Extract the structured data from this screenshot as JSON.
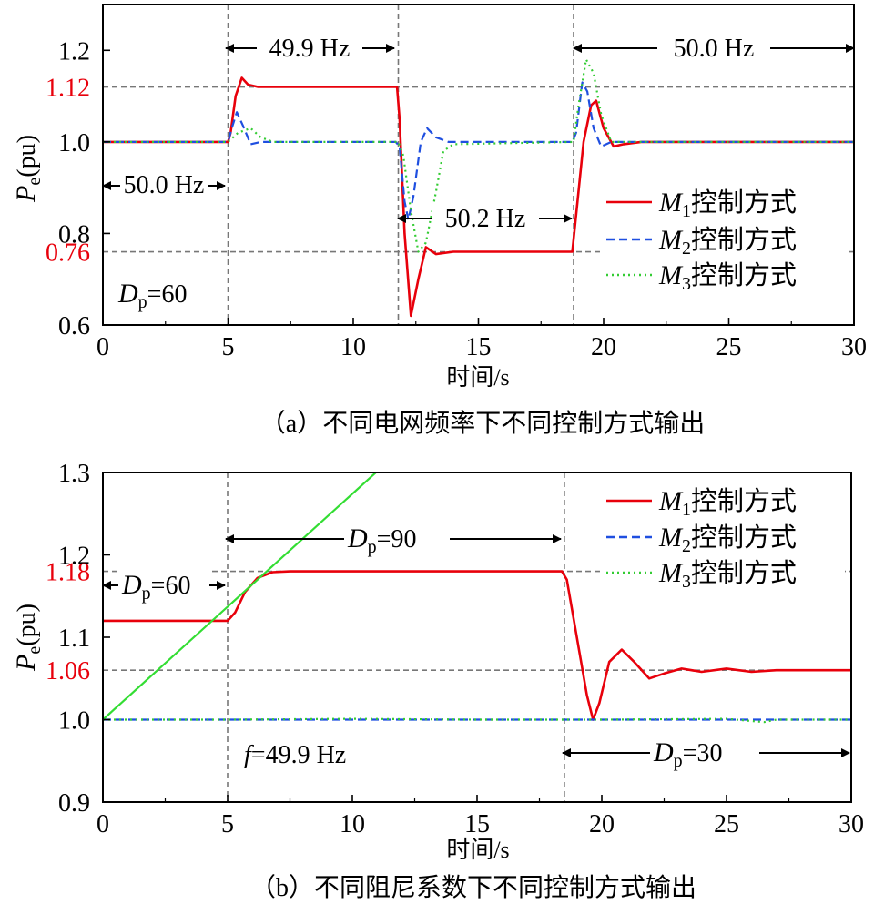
{
  "chart_data": [
    {
      "type": "line",
      "caption": "（a）不同电网频率下不同控制方式输出",
      "xlabel": "时间/s",
      "ylabel": "Pe(pu)",
      "xlim": [
        0,
        30
      ],
      "ylim": [
        0.6,
        1.3
      ],
      "x_ticks": [
        "0",
        "5",
        "10",
        "15",
        "20",
        "25",
        "30"
      ],
      "y_ticks": [
        "0.6",
        "0.8",
        "1.0",
        "1.2"
      ],
      "y_ticks_highlight": [
        "0.76",
        "1.12"
      ],
      "highlight_color": "#e8000b",
      "legend": [
        "M1控制方式",
        "M2控制方式",
        "M3控制方式"
      ],
      "annotations": {
        "f_start": "50.0 Hz",
        "f_step1": "49.9 Hz",
        "f_step2": "50.2 Hz",
        "f_step3": "50.0 Hz",
        "dp": "Dp=60"
      },
      "vlines": [
        5,
        11.8,
        18.8
      ],
      "hlines": [
        1.12,
        0.76
      ],
      "series": [
        {
          "name": "M1控制方式",
          "color": "#e8000b",
          "points": [
            [
              0,
              1.0
            ],
            [
              5,
              1.0
            ],
            [
              5.1,
              1.02
            ],
            [
              5.3,
              1.1
            ],
            [
              5.55,
              1.14
            ],
            [
              5.8,
              1.125
            ],
            [
              6.2,
              1.12
            ],
            [
              11.75,
              1.12
            ],
            [
              11.85,
              1.05
            ],
            [
              12.05,
              0.8
            ],
            [
              12.3,
              0.62
            ],
            [
              12.6,
              0.7
            ],
            [
              12.9,
              0.77
            ],
            [
              13.3,
              0.755
            ],
            [
              14,
              0.76
            ],
            [
              18.75,
              0.76
            ],
            [
              18.9,
              0.84
            ],
            [
              19.2,
              1.0
            ],
            [
              19.5,
              1.08
            ],
            [
              19.7,
              1.09
            ],
            [
              20.0,
              1.03
            ],
            [
              20.4,
              0.99
            ],
            [
              20.8,
              0.995
            ],
            [
              21.5,
              1.0
            ],
            [
              30,
              1.0
            ]
          ]
        },
        {
          "name": "M2控制方式",
          "color": "#1f4fe0",
          "points": [
            [
              0,
              1.0
            ],
            [
              5,
              1.0
            ],
            [
              5.15,
              1.03
            ],
            [
              5.35,
              1.065
            ],
            [
              5.6,
              1.035
            ],
            [
              5.9,
              0.995
            ],
            [
              6.3,
              1.0
            ],
            [
              11.7,
              1.0
            ],
            [
              11.85,
              0.99
            ],
            [
              12.05,
              0.87
            ],
            [
              12.2,
              0.83
            ],
            [
              12.4,
              0.88
            ],
            [
              12.7,
              1.0
            ],
            [
              12.95,
              1.03
            ],
            [
              13.3,
              1.01
            ],
            [
              13.8,
              1.0
            ],
            [
              18.75,
              1.0
            ],
            [
              18.9,
              1.02
            ],
            [
              19.15,
              1.13
            ],
            [
              19.35,
              1.11
            ],
            [
              19.6,
              1.03
            ],
            [
              19.9,
              0.99
            ],
            [
              20.3,
              1.0
            ],
            [
              30,
              1.0
            ]
          ]
        },
        {
          "name": "M3控制方式",
          "color": "#33cc33",
          "points": [
            [
              0,
              1.0
            ],
            [
              5,
              1.0
            ],
            [
              5.4,
              1.02
            ],
            [
              5.9,
              1.03
            ],
            [
              6.3,
              1.01
            ],
            [
              6.8,
              1.0
            ],
            [
              11.8,
              1.0
            ],
            [
              12.0,
              0.97
            ],
            [
              12.3,
              0.85
            ],
            [
              12.6,
              0.76
            ],
            [
              12.9,
              0.78
            ],
            [
              13.3,
              0.89
            ],
            [
              13.6,
              0.98
            ],
            [
              14,
              0.995
            ],
            [
              18.8,
              1.0
            ],
            [
              19.0,
              1.08
            ],
            [
              19.3,
              1.18
            ],
            [
              19.6,
              1.15
            ],
            [
              19.9,
              1.06
            ],
            [
              20.3,
              1.0
            ],
            [
              21,
              1.0
            ],
            [
              30,
              1.0
            ]
          ]
        }
      ]
    },
    {
      "type": "line",
      "caption": "（b）不同阻尼系数下不同控制方式输出",
      "xlabel": "时间/s",
      "ylabel": "Pe(pu)",
      "xlim": [
        0,
        30
      ],
      "ylim": [
        0.9,
        1.3
      ],
      "x_ticks": [
        "0",
        "5",
        "10",
        "15",
        "20",
        "25",
        "30"
      ],
      "y_ticks": [
        "0.9",
        "1.0",
        "1.1",
        "1.2",
        "1.3"
      ],
      "y_ticks_highlight": [
        "1.06",
        "1.18"
      ],
      "highlight_color": "#e8000b",
      "legend": [
        "M1控制方式",
        "M2控制方式",
        "M3控制方式"
      ],
      "annotations": {
        "dp1": "Dp=60",
        "dp2": "Dp=90",
        "dp3": "Dp=30",
        "f": "f=49.9 Hz"
      },
      "vlines": [
        5,
        18.5
      ],
      "hlines": [
        1.18,
        1.06
      ],
      "series": [
        {
          "name": "M1控制方式",
          "color": "#e8000b",
          "points": [
            [
              0,
              1.12
            ],
            [
              5,
              1.12
            ],
            [
              5.3,
              1.13
            ],
            [
              5.7,
              1.155
            ],
            [
              6.2,
              1.172
            ],
            [
              6.8,
              1.179
            ],
            [
              7.5,
              1.18
            ],
            [
              18.4,
              1.18
            ],
            [
              18.6,
              1.17
            ],
            [
              19.0,
              1.1
            ],
            [
              19.4,
              1.03
            ],
            [
              19.65,
              1.0
            ],
            [
              19.9,
              1.02
            ],
            [
              20.3,
              1.07
            ],
            [
              20.8,
              1.085
            ],
            [
              21.3,
              1.07
            ],
            [
              21.9,
              1.05
            ],
            [
              22.5,
              1.056
            ],
            [
              23.2,
              1.062
            ],
            [
              24,
              1.058
            ],
            [
              25,
              1.062
            ],
            [
              26,
              1.058
            ],
            [
              27,
              1.06
            ],
            [
              30,
              1.06
            ]
          ]
        },
        {
          "name": "M2控制方式",
          "color": "#1f4fe0",
          "points": [
            [
              0,
              1.0
            ],
            [
              30,
              1.0
            ]
          ]
        },
        {
          "name": "M3控制方式",
          "color": "#33cc33",
          "points": [
            [
              0,
              1.0
            ],
            [
              5,
              1.0
            ],
            [
              10,
              1.001
            ],
            [
              15,
              1.0
            ],
            [
              20,
              1.0
            ],
            [
              25,
              1.001
            ],
            [
              26.5,
              0.997
            ],
            [
              27,
              1.0
            ],
            [
              30,
              1.0
            ]
          ]
        },
        {
          "name": "",
          "color": "#33dd33",
          "points": [
            [
              0,
              1.0
            ],
            [
              13.5,
              1.37
            ]
          ]
        }
      ]
    }
  ]
}
